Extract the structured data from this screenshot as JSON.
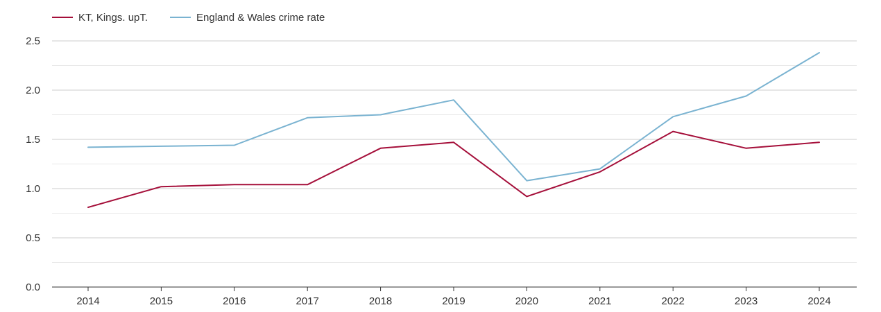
{
  "chart_data": {
    "type": "line",
    "x": [
      "2014",
      "2015",
      "2016",
      "2017",
      "2018",
      "2019",
      "2020",
      "2021",
      "2022",
      "2023",
      "2024"
    ],
    "series": [
      {
        "name": "KT, Kings. upT.",
        "color": "#a50f3a",
        "values": [
          0.81,
          1.02,
          1.04,
          1.04,
          1.41,
          1.47,
          0.92,
          1.17,
          1.58,
          1.41,
          1.47
        ]
      },
      {
        "name": "England & Wales crime rate",
        "color": "#7ab3d1",
        "values": [
          1.42,
          1.43,
          1.44,
          1.72,
          1.75,
          1.9,
          1.08,
          1.2,
          1.73,
          1.94,
          2.38
        ]
      }
    ],
    "yticks": [
      "0.0",
      "0.5",
      "1.0",
      "1.5",
      "2.0",
      "2.5"
    ],
    "ylim": [
      0,
      2.5
    ],
    "grid": true,
    "legend": "top-left"
  }
}
